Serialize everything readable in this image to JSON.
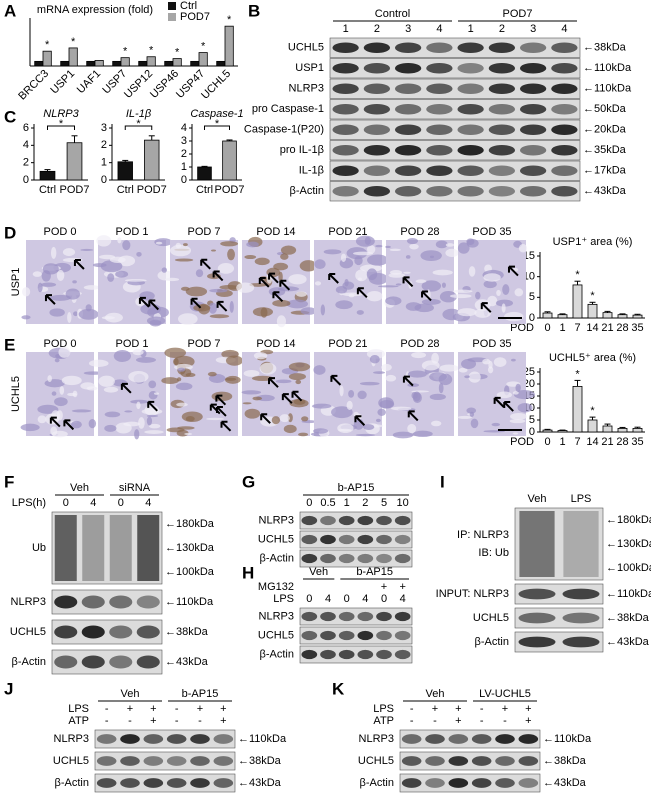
{
  "chart_data": [
    {
      "type": "bar",
      "panel": "A",
      "title": "mRNA expression (fold)",
      "categories": [
        "BRCC3",
        "USP1",
        "UAF1",
        "USP7",
        "USP12",
        "USP46",
        "USP47",
        "UCHL5"
      ],
      "series": [
        {
          "name": "Ctrl",
          "color": "#111111",
          "values": [
            1,
            1,
            1,
            1,
            1,
            1,
            1,
            1
          ]
        },
        {
          "name": "POD7",
          "color": "#a6a6a6",
          "values": [
            3.2,
            3.9,
            1.2,
            1.8,
            2.0,
            1.6,
            2.9,
            8.6
          ],
          "marks": [
            "*",
            "*",
            null,
            "*",
            "*",
            "*",
            "*",
            "*"
          ]
        }
      ],
      "ylim": [
        0,
        9.5
      ]
    },
    {
      "type": "bar",
      "panel": "C",
      "title": "NLRP3",
      "categories": [
        "Ctrl",
        "POD7"
      ],
      "values": [
        1.0,
        4.3
      ],
      "errors": [
        0.2,
        0.8
      ],
      "colors": [
        "#111111",
        "#a6a6a6"
      ],
      "ylim": [
        0,
        6
      ],
      "yticks": [
        0,
        2,
        4,
        6
      ],
      "annotation": "*"
    },
    {
      "type": "bar",
      "title": "IL-1β",
      "categories": [
        "Ctrl",
        "POD7"
      ],
      "values": [
        1.05,
        2.3
      ],
      "errors": [
        0.08,
        0.25
      ],
      "colors": [
        "#111111",
        "#a6a6a6"
      ],
      "ylim": [
        0,
        3
      ],
      "yticks": [
        0,
        1,
        2,
        3
      ],
      "annotation": "*"
    },
    {
      "type": "bar",
      "title": "Caspase-1",
      "categories": [
        "Ctrl",
        "POD7"
      ],
      "values": [
        1.0,
        3.0
      ],
      "errors": [
        0.05,
        0.08
      ],
      "colors": [
        "#111111",
        "#a6a6a6"
      ],
      "ylim": [
        0,
        4
      ],
      "yticks": [
        0,
        1,
        2,
        3,
        4
      ],
      "annotation": "*"
    },
    {
      "type": "bar",
      "title": "USP1⁺ area (%)",
      "x_label": "POD",
      "categories": [
        "0",
        "1",
        "7",
        "14",
        "21",
        "28",
        "35"
      ],
      "values": [
        1.2,
        0.8,
        8.0,
        3.3,
        1.3,
        0.8,
        0.7
      ],
      "errors": [
        0.3,
        0.2,
        0.9,
        0.5,
        0.3,
        0.2,
        0.2
      ],
      "color": "#d9d9d9",
      "ylim": [
        0,
        15
      ],
      "yticks": [
        0,
        5,
        10,
        15
      ],
      "marks": [
        null,
        null,
        "*",
        "*",
        null,
        null,
        null
      ]
    },
    {
      "type": "bar",
      "title": "UCHL5⁺ area (%)",
      "x_label": "POD",
      "categories": [
        "0",
        "1",
        "7",
        "14",
        "21",
        "28",
        "35"
      ],
      "values": [
        0.8,
        0.6,
        19,
        5.0,
        2.5,
        1.5,
        1.5
      ],
      "errors": [
        0.3,
        0.2,
        2.5,
        1.2,
        0.8,
        0.4,
        0.5
      ],
      "color": "#d9d9d9",
      "ylim": [
        0,
        25
      ],
      "yticks": [
        0,
        5,
        10,
        15,
        20,
        25
      ],
      "marks": [
        null,
        null,
        "*",
        "*",
        null,
        null,
        null
      ]
    }
  ],
  "images": [
    {
      "panel": "D",
      "row_label": "USP1",
      "labels": [
        "POD 0",
        "POD 1",
        "POD 7",
        "POD 14",
        "POD 21",
        "POD 28",
        "POD 35"
      ]
    },
    {
      "panel": "E",
      "row_label": "UCHL5",
      "labels": [
        "POD 0",
        "POD 1",
        "POD 7",
        "POD 14",
        "POD 21",
        "POD 28",
        "POD 35"
      ]
    }
  ],
  "blots": [
    {
      "panel": "B",
      "groups": [
        {
          "label": "Control"
        },
        {
          "label": "POD7"
        }
      ],
      "header_rows": [
        {
          "values": [
            "1",
            "2",
            "3",
            "4",
            "1",
            "2",
            "3",
            "4"
          ]
        }
      ],
      "rows": [
        {
          "label": "UCHL5",
          "markers": [
            "←38kDa"
          ]
        },
        {
          "label": "USP1",
          "markers": [
            "←110kDa"
          ]
        },
        {
          "label": "NLRP3",
          "markers": [
            "←110kDa"
          ]
        },
        {
          "label": "pro Caspase-1",
          "markers": [
            "←50kDa"
          ]
        },
        {
          "label": "Caspase-1(P20)",
          "markers": [
            "←20kDa"
          ]
        },
        {
          "label": "pro IL-1β",
          "markers": [
            "←35kDa"
          ]
        },
        {
          "label": "IL-1β",
          "markers": [
            "←17kDa"
          ]
        },
        {
          "label": "β-Actin",
          "markers": [
            "←43kDa"
          ]
        }
      ]
    },
    {
      "panel": "F",
      "groups": [
        {
          "label": "Veh"
        },
        {
          "label": "siRNA"
        }
      ],
      "header_rows": [
        {
          "label": "LPS(h)",
          "values": [
            "0",
            "4",
            "0",
            "4"
          ]
        }
      ],
      "rows": [
        {
          "label": "Ub",
          "markers": [
            "←180kDa",
            "←130kDa",
            "←100kDa"
          ]
        },
        {
          "label": "NLRP3",
          "markers": [
            "←110kDa"
          ]
        },
        {
          "label": "UCHL5",
          "markers": [
            "←38kDa"
          ]
        },
        {
          "label": "β-Actin",
          "markers": [
            "←43kDa"
          ]
        }
      ]
    },
    {
      "panel": "G",
      "groups": [
        {
          "label": "b-AP15"
        }
      ],
      "header_rows": [
        {
          "values": [
            "0",
            "0.5",
            "1",
            "2",
            "5",
            "10"
          ]
        }
      ],
      "rows": [
        {
          "label": "NLRP3"
        },
        {
          "label": "UCHL5"
        },
        {
          "label": "β-Actin"
        }
      ]
    },
    {
      "panel": "H",
      "groups": [
        {
          "label": "Veh"
        },
        {
          "label": "b-AP15"
        }
      ],
      "header_rows": [
        {
          "label": "MG132",
          "values": [
            null,
            null,
            null,
            null,
            "+",
            "+"
          ]
        },
        {
          "label": "LPS",
          "values": [
            "0",
            "4",
            "0",
            "4",
            "0",
            "4"
          ]
        }
      ],
      "rows": [
        {
          "label": "NLRP3"
        },
        {
          "label": "UCHL5"
        },
        {
          "label": "β-Actin"
        }
      ]
    },
    {
      "panel": "I",
      "header_rows": [
        {
          "values": [
            "Veh",
            "LPS"
          ]
        }
      ],
      "rows": [
        {
          "label": "IP: NLRP3",
          "sublabel": "IB: Ub",
          "markers": [
            "←180kDa",
            "←130kDa",
            "←100kDa"
          ]
        },
        {
          "label": "INPUT: NLRP3",
          "markers": [
            "←110kDa"
          ]
        },
        {
          "label": "UCHL5",
          "markers": [
            "←38kDa"
          ]
        },
        {
          "label": "β-Actin",
          "markers": [
            "←43kDa"
          ]
        }
      ]
    },
    {
      "panel": "J",
      "groups": [
        {
          "label": "Veh"
        },
        {
          "label": "b-AP15"
        }
      ],
      "header_rows": [
        {
          "label": "LPS",
          "values": [
            "-",
            "+",
            "+",
            "-",
            "+",
            "+"
          ]
        },
        {
          "label": "ATP",
          "values": [
            "-",
            "-",
            "+",
            "-",
            "-",
            "+"
          ]
        }
      ],
      "rows": [
        {
          "label": "NLRP3",
          "markers": [
            "←110kDa"
          ]
        },
        {
          "label": "UCHL5",
          "markers": [
            "←38kDa"
          ]
        },
        {
          "label": "β-Actin",
          "markers": [
            "←43kDa"
          ]
        }
      ]
    },
    {
      "panel": "K",
      "groups": [
        {
          "label": "Veh"
        },
        {
          "label": "LV-UCHL5"
        }
      ],
      "header_rows": [
        {
          "label": "LPS",
          "values": [
            "-",
            "+",
            "+",
            "-",
            "+",
            "+"
          ]
        },
        {
          "label": "ATP",
          "values": [
            "-",
            "-",
            "+",
            "-",
            "-",
            "+"
          ]
        }
      ],
      "rows": [
        {
          "label": "NLRP3",
          "markers": [
            "←110kDa"
          ]
        },
        {
          "label": "UCHL5",
          "markers": [
            "←38kDa"
          ]
        },
        {
          "label": "β-Actin",
          "markers": [
            "←43kDa"
          ]
        }
      ]
    }
  ]
}
